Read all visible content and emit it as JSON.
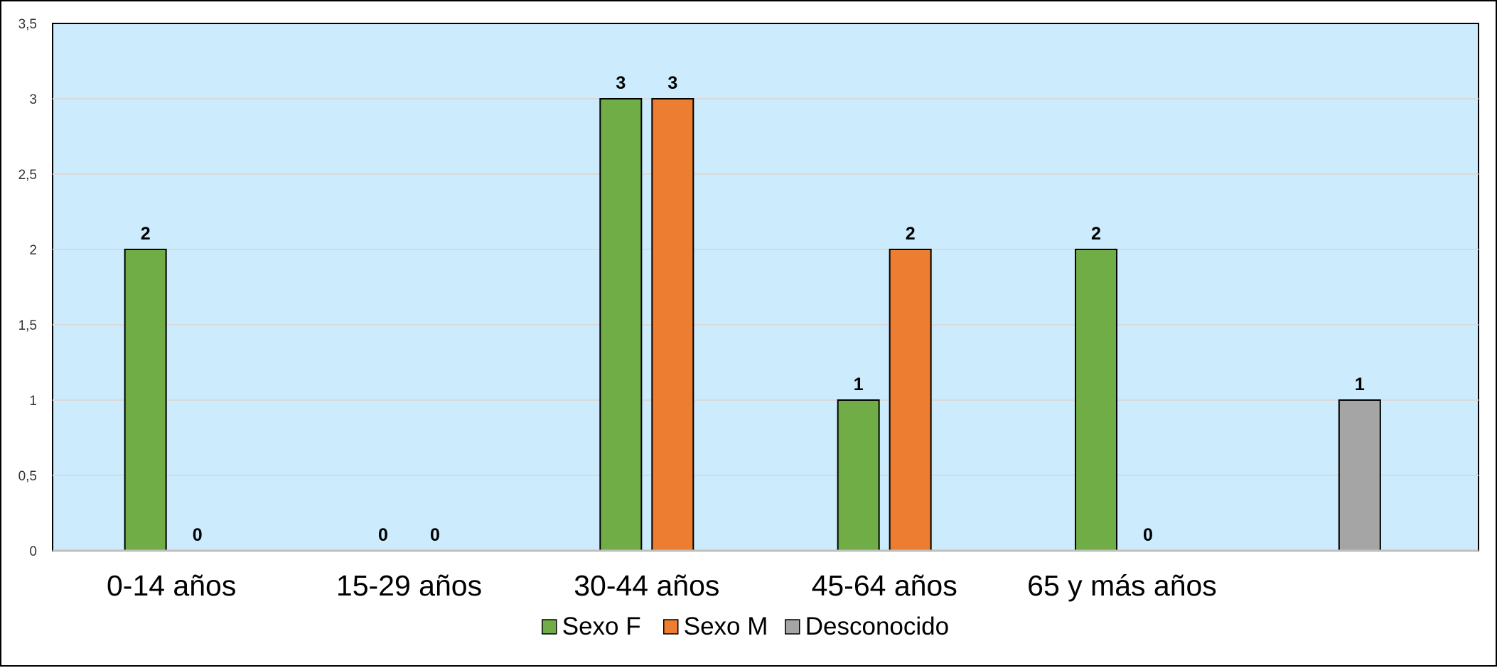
{
  "chart_data": {
    "type": "bar",
    "categories": [
      "0-14 años",
      "15-29 años",
      "30-44 años",
      "45-64 años",
      "65 y más años",
      ""
    ],
    "series": [
      {
        "name": "Sexo F",
        "color": "#70AD47",
        "values": [
          2,
          0,
          3,
          1,
          2,
          null
        ]
      },
      {
        "name": "Sexo M",
        "color": "#ED7D31",
        "values": [
          0,
          0,
          3,
          2,
          0,
          null
        ]
      },
      {
        "name": "Desconocido",
        "color": "#A5A5A5",
        "values": [
          null,
          null,
          null,
          null,
          null,
          1
        ]
      }
    ],
    "yticks": [
      "0",
      "0,5",
      "1",
      "1,5",
      "2",
      "2,5",
      "3",
      "3,5"
    ],
    "ylim": [
      0,
      3.5
    ],
    "title": "",
    "xlabel": "",
    "ylabel": "",
    "plot_background": "#CCEBFC",
    "grid": true,
    "legend": "bottom"
  }
}
